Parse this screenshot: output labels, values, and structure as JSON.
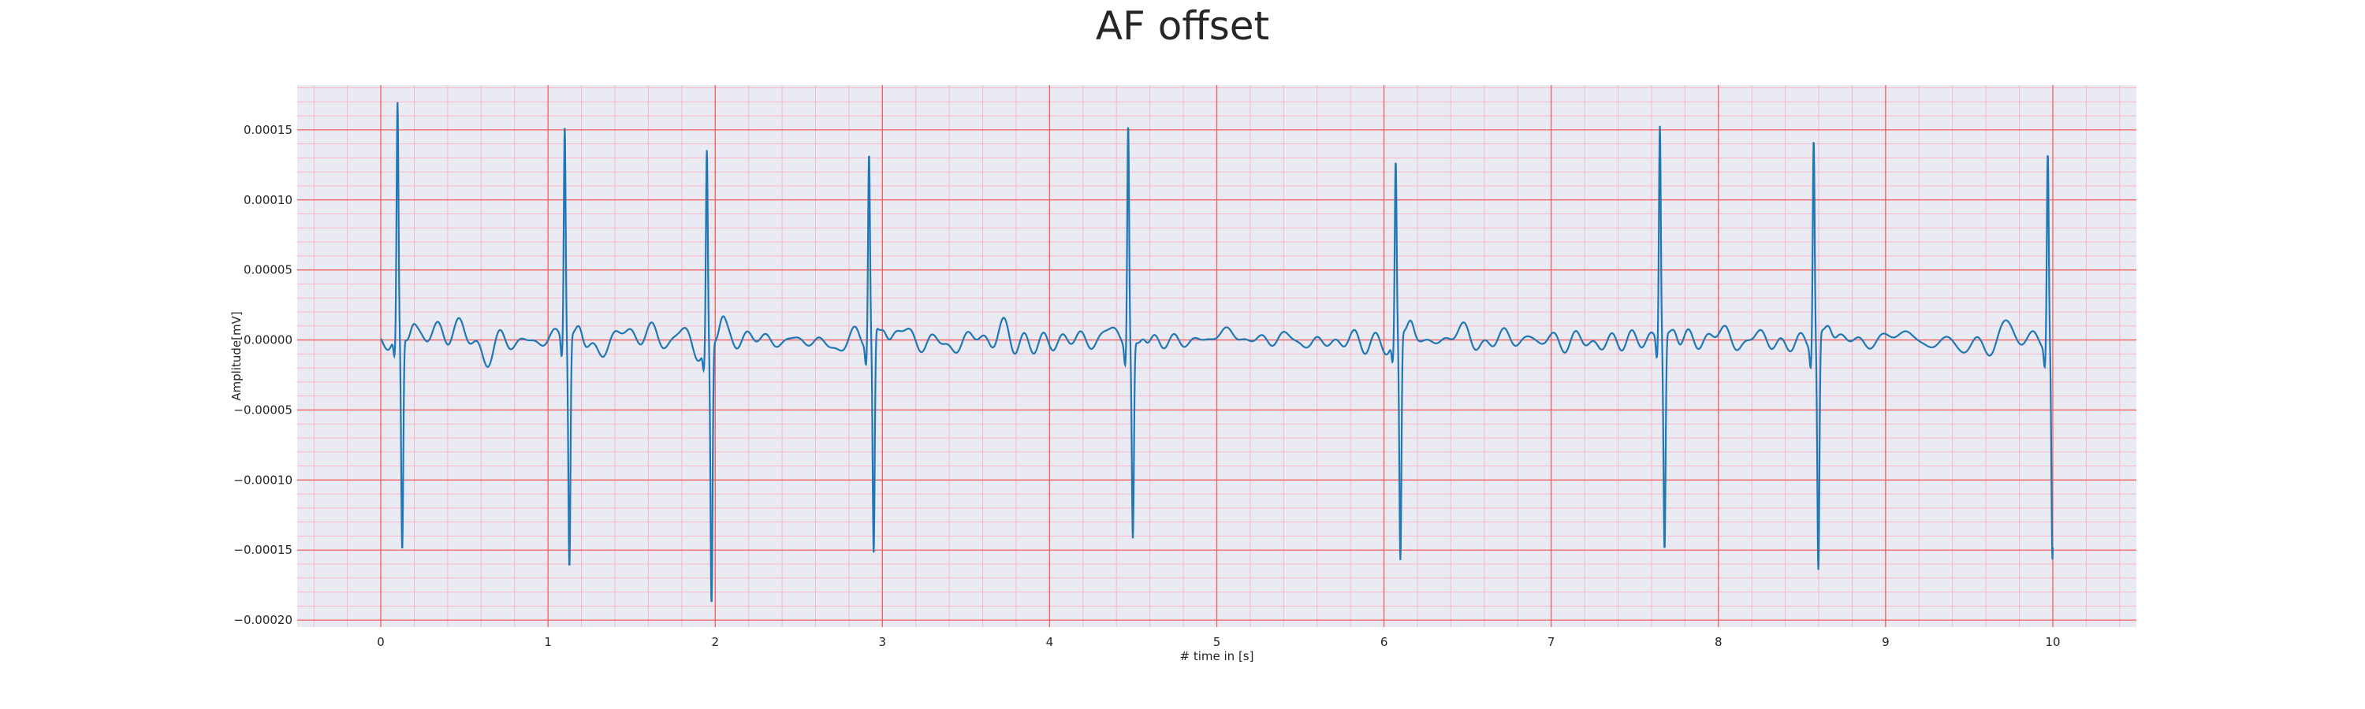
{
  "chart_data": {
    "type": "line",
    "title": "AF offset",
    "xlabel": "# time in [s]",
    "ylabel": "Amplitude[mV]",
    "xlim": [
      -0.5,
      10.5
    ],
    "ylim": [
      -0.000205,
      0.000182
    ],
    "x_ticks": [
      0,
      1,
      2,
      3,
      4,
      5,
      6,
      7,
      8,
      9,
      10
    ],
    "x_tick_labels": [
      "0",
      "1",
      "2",
      "3",
      "4",
      "5",
      "6",
      "7",
      "8",
      "9",
      "10"
    ],
    "y_ticks": [
      0.00015,
      0.0001,
      5e-05,
      0.0,
      -5e-05,
      -0.0001,
      -0.00015,
      -0.0002
    ],
    "y_tick_labels": [
      "0.00015",
      "0.00010",
      "0.00005",
      "0.00000",
      "−0.00005",
      "−0.00010",
      "−0.00015",
      "−0.00020"
    ],
    "grid": true,
    "major_grid_color": "#f06060",
    "minor_grid_color": "#f5b8c8",
    "background_color": "#eaeaf2",
    "series": [
      {
        "color": "#1f77b4",
        "peaks": [
          {
            "t": 0.1,
            "r": 0.000163,
            "s": -0.000155
          },
          {
            "t": 1.1,
            "r": 0.000152,
            "s": -0.000164
          },
          {
            "t": 1.95,
            "r": 0.000138,
            "s": -0.000188
          },
          {
            "t": 2.92,
            "r": 0.000133,
            "s": -0.00016
          },
          {
            "t": 4.47,
            "r": 0.000158,
            "s": -0.00014
          },
          {
            "t": 6.07,
            "r": 0.000125,
            "s": -0.000163
          },
          {
            "t": 7.65,
            "r": 0.000154,
            "s": -0.000152
          },
          {
            "t": 8.57,
            "r": 0.000147,
            "s": -0.000168
          },
          {
            "t": 9.97,
            "r": 0.000137,
            "s": -0.00016
          }
        ]
      }
    ]
  }
}
